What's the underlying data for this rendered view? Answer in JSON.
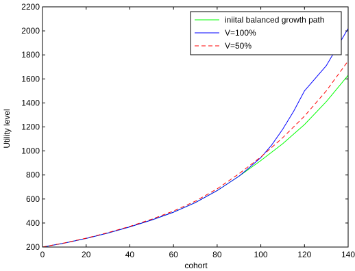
{
  "chart_data": {
    "type": "line",
    "title": "",
    "xlabel": "cohort",
    "ylabel": "Utility level",
    "xlim": [
      0,
      140
    ],
    "ylim": [
      200,
      2200
    ],
    "xticks": [
      0,
      20,
      40,
      60,
      80,
      100,
      120,
      140
    ],
    "yticks": [
      200,
      400,
      600,
      800,
      1000,
      1200,
      1400,
      1600,
      1800,
      2000,
      2200
    ],
    "grid": false,
    "legend_position": "top-right",
    "series": [
      {
        "name": "iniital balanced growth path",
        "color": "#00ff00",
        "style": "solid",
        "x": [
          0,
          10,
          20,
          30,
          40,
          50,
          60,
          70,
          80,
          90,
          100,
          110,
          120,
          130,
          140
        ],
        "y": [
          200,
          233,
          272,
          317,
          368,
          425,
          490,
          570,
          670,
          790,
          920,
          1060,
          1220,
          1410,
          1630
        ]
      },
      {
        "name": "V=100%",
        "color": "#0000ff",
        "style": "solid",
        "x": [
          0,
          10,
          20,
          30,
          40,
          50,
          60,
          70,
          80,
          90,
          95,
          100,
          105,
          110,
          115,
          120,
          130,
          140
        ],
        "y": [
          200,
          233,
          272,
          317,
          368,
          425,
          490,
          570,
          670,
          790,
          865,
          945,
          1050,
          1180,
          1330,
          1500,
          1710,
          2020
        ]
      },
      {
        "name": "V=50%",
        "color": "#ff0000",
        "style": "dashed",
        "x": [
          0,
          10,
          20,
          30,
          40,
          50,
          60,
          70,
          80,
          90,
          100,
          110,
          120,
          130,
          140
        ],
        "y": [
          200,
          234,
          274,
          320,
          372,
          432,
          500,
          582,
          685,
          810,
          950,
          1110,
          1290,
          1500,
          1750
        ]
      }
    ]
  }
}
